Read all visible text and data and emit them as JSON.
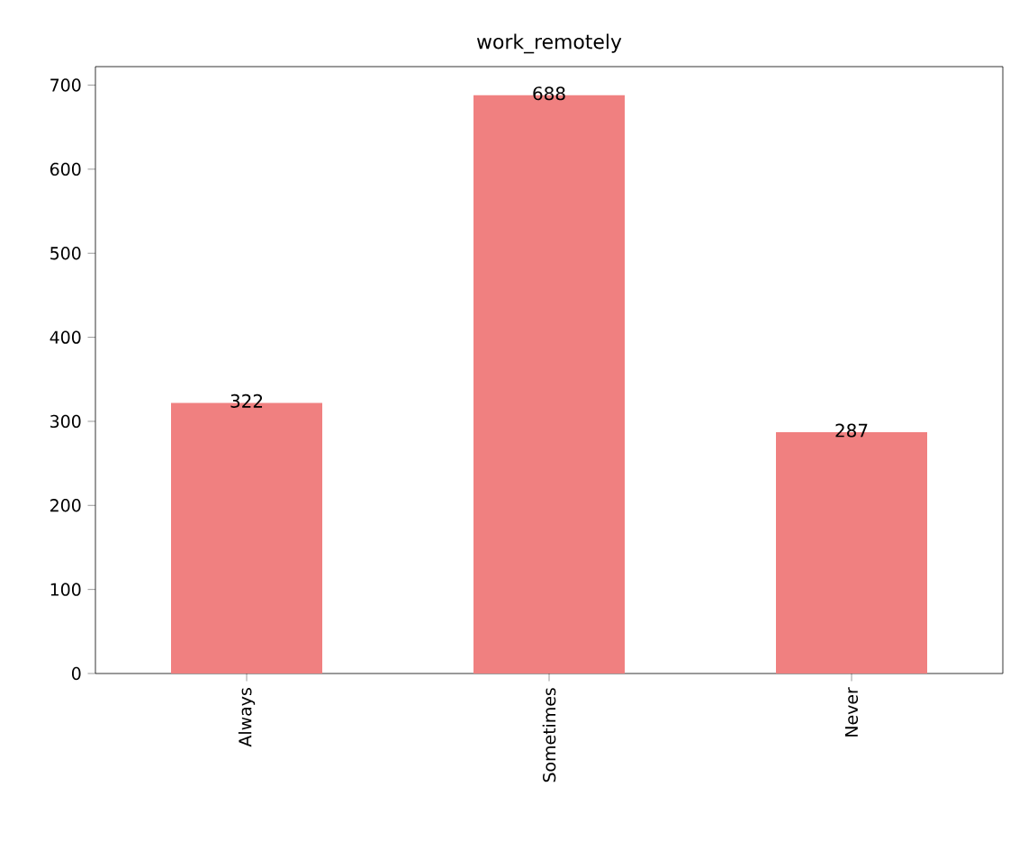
{
  "chart_data": {
    "type": "bar",
    "title": "work_remotely",
    "categories": [
      "Always",
      "Sometimes",
      "Never"
    ],
    "values": [
      322,
      688,
      287
    ],
    "color": "#f08080",
    "ylim": [
      0,
      722
    ],
    "yticks": [
      0,
      100,
      200,
      300,
      400,
      500,
      600,
      700
    ],
    "data_labels": true
  }
}
